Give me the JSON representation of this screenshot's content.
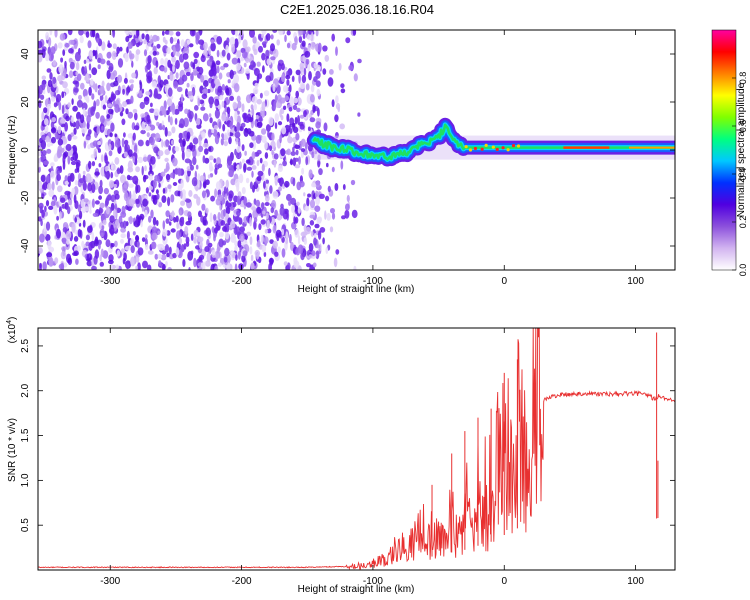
{
  "figure_title": "C2E1.2025.036.18.16.R04",
  "colorbar": {
    "label": "Normalized spectral amplitude",
    "ticks": [
      "0.0",
      "0.2",
      "0.4",
      "0.6",
      "0.8"
    ],
    "tick_values": [
      0.0,
      0.2,
      0.4,
      0.6,
      0.8
    ],
    "range": [
      0,
      1
    ],
    "colors": [
      "#ffffff",
      "#d2b4f0",
      "#8c50dc",
      "#5000e0",
      "#0030ff",
      "#00c8ff",
      "#00ff80",
      "#80ff00",
      "#ffff00",
      "#ff8000",
      "#ff0000",
      "#ff00a0"
    ]
  },
  "chart_data": [
    {
      "type": "heatmap",
      "title": "",
      "xlabel": "Height of straight line (km)",
      "ylabel": "Frequency (Hz)",
      "xlim": [
        -355,
        130
      ],
      "ylim": [
        -50,
        50
      ],
      "xticks": [
        -300,
        -200,
        -100,
        0,
        100
      ],
      "yticks": [
        -40,
        -20,
        0,
        20,
        40
      ],
      "xtick_labels": [
        "-300",
        "-200",
        "-100",
        "0",
        "100"
      ],
      "ytick_labels": [
        "-40",
        "-20",
        "0",
        "20",
        "40"
      ],
      "noise_region_x": [
        -355,
        -140
      ],
      "signal_trace": {
        "x": [
          -145,
          -130,
          -120,
          -110,
          -100,
          -90,
          -80,
          -70,
          -60,
          -50,
          -45,
          -40,
          -30,
          -20,
          -10,
          0,
          20,
          40,
          60,
          80,
          100,
          115,
          130
        ],
        "y": [
          4,
          1,
          0,
          -1,
          -2,
          -3,
          -2,
          0,
          3,
          5,
          10,
          4,
          1,
          1,
          1,
          1,
          1,
          1,
          1,
          1,
          1,
          1,
          1
        ]
      }
    },
    {
      "type": "line",
      "title": "",
      "xlabel": "Height of straight line (km)",
      "ylabel": "SNR (10 * v/v)",
      "y_multiplier": "(x10",
      "y_multiplier_exp": "4",
      "y_multiplier_close": ")",
      "xlim": [
        -355,
        130
      ],
      "ylim": [
        0,
        2.7
      ],
      "xticks": [
        -300,
        -200,
        -100,
        0,
        100
      ],
      "yticks": [
        0.5,
        1.0,
        1.5,
        2.0,
        2.5
      ],
      "xtick_labels": [
        "-300",
        "-200",
        "-100",
        "0",
        "100"
      ],
      "ytick_labels": [
        "0.5",
        "1.0",
        "1.5",
        "2.0",
        "2.5"
      ],
      "series": [
        {
          "name": "SNR",
          "color": "#e83030",
          "x": [
            -355,
            -300,
            -250,
            -200,
            -150,
            -120,
            -110,
            -100,
            -90,
            -80,
            -70,
            -60,
            -50,
            -40,
            -30,
            -20,
            -10,
            0,
            10,
            20,
            30,
            40,
            60,
            80,
            100,
            110,
            115,
            118,
            120,
            130
          ],
          "y": [
            0.03,
            0.03,
            0.03,
            0.03,
            0.03,
            0.04,
            0.05,
            0.08,
            0.15,
            0.25,
            0.35,
            0.45,
            0.55,
            0.65,
            0.75,
            0.9,
            1.05,
            1.3,
            1.55,
            1.75,
            1.9,
            1.95,
            1.97,
            1.96,
            1.97,
            1.95,
            1.9,
            1.95,
            1.92,
            1.9
          ]
        }
      ],
      "spikes": [
        {
          "x": -55,
          "y": 0.95
        },
        {
          "x": -40,
          "y": 1.3
        },
        {
          "x": -30,
          "y": 1.55
        },
        {
          "x": -20,
          "y": 1.7
        },
        {
          "x": -10,
          "y": 1.8
        },
        {
          "x": 0,
          "y": 2.2
        },
        {
          "x": 10,
          "y": 2.35
        },
        {
          "x": 116,
          "y": 2.65
        },
        {
          "x": 117,
          "y": 1.22
        }
      ]
    }
  ]
}
